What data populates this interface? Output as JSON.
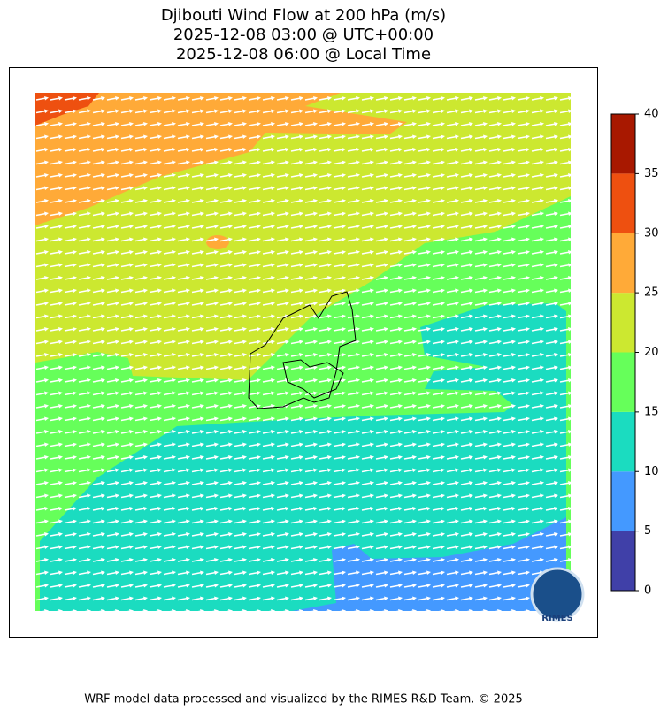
{
  "title": [
    "Djibouti Wind Flow at 200 hPa (m/s)",
    "2025-12-08 03:00 @ UTC+00:00",
    "2025-12-08 06:00 @ Local Time"
  ],
  "colorbar": {
    "levels": [
      0,
      5,
      10,
      15,
      20,
      25,
      30,
      35,
      40
    ],
    "colors": [
      "#4040a8",
      "#4499ff",
      "#1bdcc0",
      "#66ff5a",
      "#cce830",
      "#ffaa38",
      "#ee5010",
      "#a81800"
    ]
  },
  "logo": "RIMES",
  "footer": "WRF model data processed and visualized by the RIMES R&D Team. © 2025"
}
